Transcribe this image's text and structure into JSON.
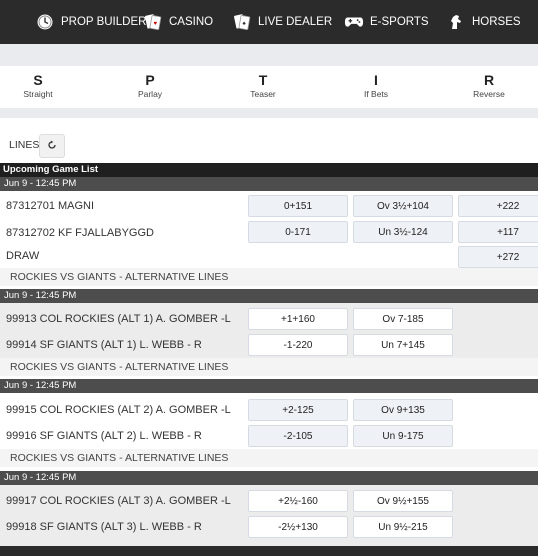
{
  "nav": [
    {
      "label": "PROP BUILDER",
      "icon": "clock-icon"
    },
    {
      "label": "CASINO",
      "icon": "cards-icon"
    },
    {
      "label": "LIVE DEALER",
      "icon": "cards-icon"
    },
    {
      "label": "E-SPORTS",
      "icon": "gamepad-icon"
    },
    {
      "label": "HORSES",
      "icon": "horse-icon"
    }
  ],
  "bet_types": [
    {
      "letter": "S",
      "label": "Straight"
    },
    {
      "letter": "P",
      "label": "Parlay"
    },
    {
      "letter": "T",
      "label": "Teaser"
    },
    {
      "letter": "I",
      "label": "If Bets"
    },
    {
      "letter": "R",
      "label": "Reverse"
    }
  ],
  "lines_label": "LINES",
  "list_title": "Upcoming Game List",
  "games": [
    {
      "date": "Jun 9 - 12:45 PM",
      "rows": [
        {
          "team": "87312701 MAGNI",
          "spread": "0+151",
          "total": "Ov 3½+104",
          "ml": "+222"
        },
        {
          "team": "87312702 KF FJALLABYGGD",
          "spread": "0-171",
          "total": "Un 3½-124",
          "ml": "+117"
        },
        {
          "team": "DRAW",
          "ml": "+272"
        }
      ],
      "alt": "ROCKIES VS GIANTS - ALTERNATIVE LINES"
    },
    {
      "date": "Jun 9 - 12:45 PM",
      "rows": [
        {
          "team": "99913 COL ROCKIES (ALT 1) A. GOMBER -L",
          "spread": "+1+160",
          "total": "Ov 7-185"
        },
        {
          "team": "99914 SF GIANTS (ALT 1) L. WEBB - R",
          "spread": "-1-220",
          "total": "Un 7+145"
        }
      ],
      "alt": "ROCKIES VS GIANTS - ALTERNATIVE LINES"
    },
    {
      "date": "Jun 9 - 12:45 PM",
      "rows": [
        {
          "team": "99915 COL ROCKIES (ALT 2) A. GOMBER -L",
          "spread": "+2-125",
          "total": "Ov 9+135"
        },
        {
          "team": "99916 SF GIANTS (ALT 2) L. WEBB - R",
          "spread": "-2-105",
          "total": "Un 9-175"
        }
      ],
      "alt": "ROCKIES VS GIANTS - ALTERNATIVE LINES"
    },
    {
      "date": "Jun 9 - 12:45 PM",
      "rows": [
        {
          "team": "99917 COL ROCKIES (ALT 3) A. GOMBER -L",
          "spread": "+2½-160",
          "total": "Ov 9½+155"
        },
        {
          "team": "99918 SF GIANTS (ALT 3) L. WEBB - R",
          "spread": "-2½+130",
          "total": "Un 9½-215"
        }
      ]
    }
  ]
}
